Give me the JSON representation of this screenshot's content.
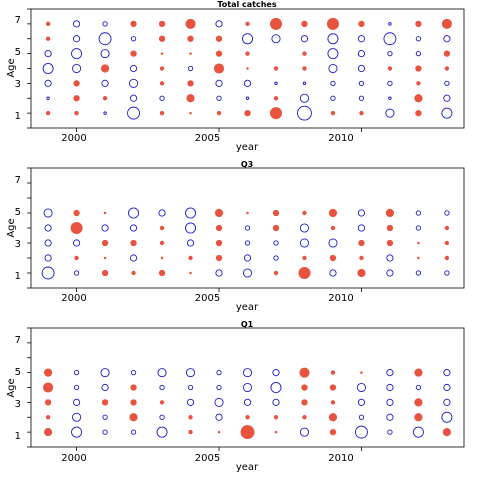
{
  "colors": {
    "positive": "#e8533f",
    "negative": "#1a1acc",
    "axis": "#000000"
  },
  "chart_data": [
    {
      "type": "scatter",
      "title": "Total catches",
      "xlabel": "year",
      "ylabel": "Age",
      "xlim": [
        1998.4,
        2013.6
      ],
      "ylim": [
        0,
        8
      ],
      "x_ticks": [
        "2000",
        "2005",
        "2010"
      ],
      "y_ticks": [
        "1",
        "3",
        "5",
        "7"
      ],
      "years": [
        1999,
        2000,
        2001,
        2002,
        2003,
        2004,
        2005,
        2006,
        2007,
        2008,
        2009,
        2010,
        2011,
        2012,
        2013
      ],
      "ages": [
        1,
        2,
        3,
        4,
        5,
        6,
        7
      ],
      "residuals": [
        [
          2,
          2,
          -1,
          -6,
          2,
          1,
          2,
          3,
          6,
          -7,
          2,
          2,
          -4,
          3,
          -5
        ],
        [
          -1,
          3,
          2,
          -3,
          -2,
          4,
          -2,
          -1,
          2,
          -4,
          -2,
          -2,
          -1,
          4,
          -3
        ],
        [
          -3,
          3,
          -3,
          -4,
          2,
          3,
          -3,
          -3,
          -1,
          -1,
          -2,
          -2,
          -2,
          2,
          -2
        ],
        [
          -5,
          -4,
          4,
          -3,
          2,
          -2,
          5,
          1,
          2,
          2,
          -4,
          -3,
          2,
          3,
          2
        ],
        [
          -3,
          -5,
          -4,
          3,
          1,
          1,
          3,
          2,
          0,
          2,
          -5,
          -3,
          -2,
          -2,
          3
        ],
        [
          2,
          -3,
          -6,
          -2,
          3,
          3,
          3,
          -5,
          -4,
          -3,
          -5,
          -3,
          -6,
          -2,
          -3
        ],
        [
          2,
          -3,
          -2,
          3,
          3,
          5,
          -3,
          2,
          6,
          3,
          6,
          3,
          -1,
          3,
          5
        ]
      ]
    },
    {
      "type": "scatter",
      "title": "Q3",
      "xlabel": "year",
      "ylabel": "Age",
      "xlim": [
        1998.4,
        2013.6
      ],
      "ylim": [
        0,
        8
      ],
      "x_ticks": [
        "2000",
        "2005",
        "2010"
      ],
      "y_ticks": [
        "1",
        "3",
        "5",
        "7"
      ],
      "years": [
        1999,
        2000,
        2001,
        2002,
        2003,
        2004,
        2005,
        2006,
        2007,
        2008,
        2009,
        2010,
        2011,
        2012,
        2013
      ],
      "ages": [
        1,
        2,
        3,
        4,
        5
      ],
      "residuals": [
        [
          -6,
          -2,
          3,
          2,
          3,
          1,
          -3,
          -4,
          2,
          6,
          -3,
          4,
          -3,
          -2,
          -2
        ],
        [
          -3,
          2,
          1,
          -3,
          1,
          2,
          3,
          -3,
          -2,
          2,
          3,
          2,
          -3,
          1,
          2
        ],
        [
          -3,
          -3,
          3,
          3,
          2,
          -3,
          3,
          -2,
          -2,
          -4,
          -4,
          3,
          3,
          1,
          2
        ],
        [
          -3,
          6,
          -3,
          -3,
          2,
          -5,
          3,
          -2,
          3,
          -4,
          2,
          -3,
          3,
          -2,
          2
        ],
        [
          -4,
          3,
          1,
          -5,
          -3,
          -5,
          4,
          1,
          3,
          2,
          4,
          -3,
          4,
          -2,
          -2
        ]
      ]
    },
    {
      "type": "scatter",
      "title": "Q1",
      "xlabel": "year",
      "ylabel": "Age",
      "xlim": [
        1998.4,
        2013.6
      ],
      "ylim": [
        0,
        8
      ],
      "x_ticks": [
        "2000",
        "2005",
        "2010"
      ],
      "y_ticks": [
        "1",
        "3",
        "5",
        "7"
      ],
      "years": [
        1999,
        2000,
        2001,
        2002,
        2003,
        2004,
        2005,
        2006,
        2007,
        2008,
        2009,
        2010,
        2011,
        2012,
        2013
      ],
      "ages": [
        1,
        2,
        3,
        4,
        5
      ],
      "residuals": [
        [
          4,
          -5,
          -2,
          -2,
          -5,
          2,
          1,
          7,
          1,
          -4,
          3,
          -6,
          -2,
          -5,
          4
        ],
        [
          2,
          -4,
          -2,
          4,
          -2,
          2,
          -3,
          2,
          2,
          2,
          4,
          -2,
          -3,
          4,
          -5
        ],
        [
          3,
          -3,
          3,
          3,
          2,
          -3,
          -4,
          -3,
          -3,
          3,
          2,
          -3,
          -3,
          4,
          -3
        ],
        [
          5,
          -2,
          -3,
          3,
          -2,
          -2,
          -2,
          -4,
          -5,
          3,
          3,
          -4,
          -3,
          -2,
          -3
        ],
        [
          4,
          -2,
          -4,
          -2,
          -4,
          -4,
          -2,
          -4,
          -3,
          5,
          2,
          1,
          -3,
          4,
          -3
        ]
      ]
    }
  ]
}
